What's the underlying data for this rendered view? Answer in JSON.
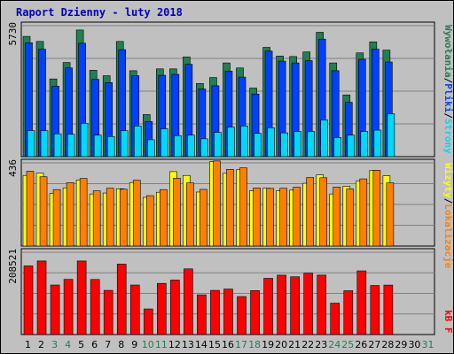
{
  "title": "Raport Dzienny -  luty 2018",
  "colors": {
    "background": "#c0c0c0",
    "hits": "#208050",
    "files": "#0040ff",
    "pages": "#00d8f8",
    "visits": "#ffff00",
    "sites": "#ff8000",
    "kbytes": "#ff0000",
    "weekday": "#000000",
    "weekend": "#208050",
    "slash": "#000000"
  },
  "right_labels": {
    "top": [
      {
        "text": "Wywołania",
        "color": "#208050"
      },
      {
        "text": "/",
        "color": "#000000"
      },
      {
        "text": "Pliki",
        "color": "#0040ff"
      },
      {
        "text": "/",
        "color": "#000000"
      },
      {
        "text": "Strony",
        "color": "#00d8f8"
      }
    ],
    "middle": [
      {
        "text": "Wizyty",
        "color": "#ffff00"
      },
      {
        "text": "/",
        "color": "#000000"
      },
      {
        "text": "Lokalizacje",
        "color": "#ff8000"
      }
    ],
    "bottom": [
      {
        "text": "kB F",
        "color": "#ff0000"
      }
    ]
  },
  "chart_data": {
    "type": "bar",
    "title": "Raport Dzienny -  luty 2018",
    "categories": [
      "1",
      "2",
      "3",
      "4",
      "5",
      "6",
      "7",
      "8",
      "9",
      "10",
      "11",
      "12",
      "13",
      "14",
      "15",
      "16",
      "17",
      "18",
      "19",
      "20",
      "21",
      "22",
      "23",
      "24",
      "25",
      "26",
      "27",
      "28",
      "29",
      "30",
      "31"
    ],
    "weekend_days": [
      "3",
      "4",
      "10",
      "11",
      "17",
      "18",
      "24",
      "25",
      "31"
    ],
    "panels": [
      {
        "name": "top",
        "ymax_label": "5730",
        "ymax": 5730,
        "series": [
          {
            "name": "Wywołania",
            "values": [
              5260,
              5040,
              3400,
              4120,
              5540,
              3780,
              3540,
              5040,
              3760,
              1840,
              3840,
              3840,
              4360,
              3200,
              3460,
              4100,
              3880,
              3000,
              4780,
              4400,
              4380,
              4580,
              5440,
              4100,
              2700,
              4540,
              5020,
              4660,
              0,
              0,
              0
            ]
          },
          {
            "name": "Pliki",
            "values": [
              4980,
              4700,
              3080,
              3880,
              4960,
              3380,
              3240,
              4680,
              3540,
              1540,
              3560,
              3600,
              4040,
              2960,
              3100,
              3740,
              3480,
              2740,
              4620,
              4180,
              4100,
              4200,
              5140,
              3760,
              2380,
              4260,
              4700,
              4140,
              0,
              0,
              0
            ]
          },
          {
            "name": "Strony",
            "values": [
              1140,
              1140,
              1000,
              980,
              1460,
              940,
              880,
              1140,
              1340,
              740,
              1220,
              920,
              940,
              780,
              1060,
              1290,
              1340,
              1020,
              1260,
              1040,
              1100,
              1100,
              1600,
              840,
              940,
              1100,
              1160,
              1880,
              0,
              0,
              0
            ]
          }
        ]
      },
      {
        "name": "middle",
        "ymax_label": "436",
        "ymax": 436,
        "series": [
          {
            "name": "Wizyty",
            "values": [
              370,
              382,
              276,
              305,
              346,
              273,
              278,
              300,
              333,
              255,
              282,
              390,
              370,
              283,
              442,
              381,
              400,
              290,
              303,
              290,
              293,
              329,
              373,
              273,
              313,
              342,
              397,
              368,
              0,
              0,
              0
            ]
          },
          {
            "name": "Lokalizacje",
            "values": [
              392,
              363,
              296,
              332,
              354,
              289,
              303,
              298,
              345,
              264,
              296,
              355,
              331,
              297,
              446,
              402,
              410,
              304,
              302,
              303,
              308,
              359,
              358,
              309,
              299,
              352,
              397,
              331,
              0,
              0,
              0
            ]
          }
        ]
      },
      {
        "name": "bottom",
        "ymax_label": "208521",
        "ymax": 208521,
        "series": [
          {
            "name": "kB F",
            "values": [
              173900,
              186400,
              125500,
              139700,
              186300,
              139500,
              111900,
              178400,
              125500,
              64900,
              129600,
              138000,
              166400,
              100600,
              111900,
              115200,
              96200,
              111300,
              142400,
              150400,
              146300,
              155300,
              150500,
              79500,
              111000,
              161300,
              124300,
              125300,
              0,
              0,
              0
            ]
          }
        ]
      }
    ]
  }
}
